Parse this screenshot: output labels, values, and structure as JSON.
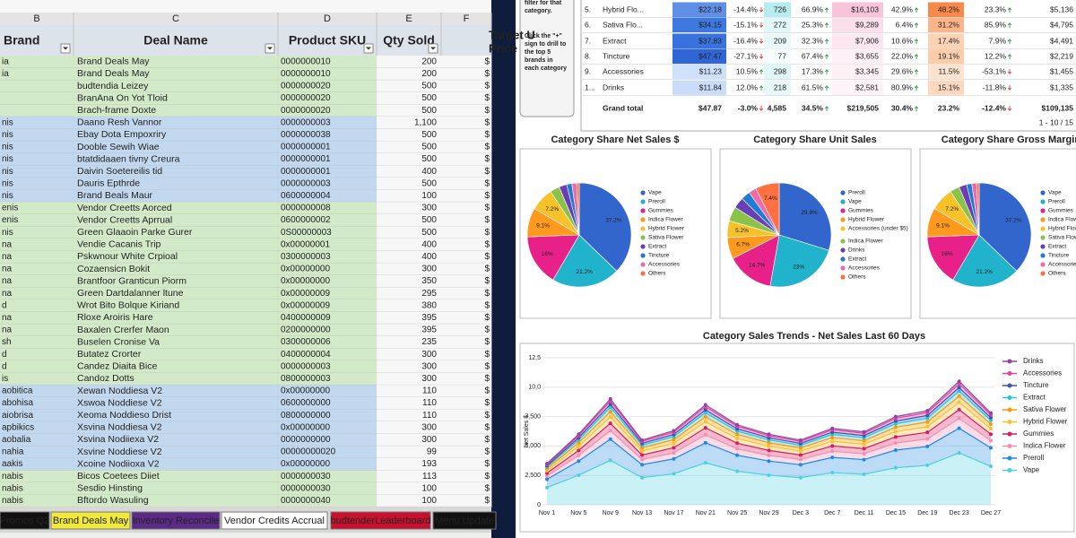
{
  "spreadsheet": {
    "column_letters": [
      "B",
      "C",
      "D",
      "E",
      "F"
    ],
    "headers": [
      "Brand",
      "Deal Name",
      "Product SKU",
      "Qty Sold",
      [
        "Target U",
        "Price"
      ]
    ],
    "rows": [
      [
        "ia",
        "Brand Deals May",
        "0000000010",
        "200",
        "$"
      ],
      [
        "ia",
        "Brand Deals May",
        "0000000010",
        "200",
        "$"
      ],
      [
        null,
        "budtendia Leizey",
        "0000000020",
        "500",
        "$"
      ],
      [
        null,
        "BranAna On Yot Tloid",
        "0000000020",
        "500",
        "$"
      ],
      [
        null,
        "Brach-frame Doxte",
        "0000000020",
        "500",
        "$"
      ],
      [
        "nis",
        "Daano Resh Vannor",
        "0000000003",
        "1,100",
        "$"
      ],
      [
        "nis",
        "Ebay Dota Empoxriry",
        "0000000038",
        "500",
        "$"
      ],
      [
        "nis",
        "Dooble Sewih Wiae",
        "0000000001",
        "500",
        "$"
      ],
      [
        "nis",
        "btatdidaaen tivny Creura",
        "0000000001",
        "500",
        "$"
      ],
      [
        "nis",
        "Daivin Soetereilis tid",
        "0000000001",
        "400",
        "$"
      ],
      [
        "nis",
        "Dauris Epthrde",
        "0000000003",
        "500",
        "$"
      ],
      [
        "nis",
        "Brand Beals Maur",
        "0600000004",
        "100",
        "$"
      ],
      [
        "enis",
        "Vendor Creetts Aorced",
        "0000000008",
        "300",
        "$"
      ],
      [
        "enis",
        "Vendor Creetts Aprrual",
        "0600000002",
        "500",
        "$"
      ],
      [
        "nis",
        "Green Glaaoin Parke Gurer",
        "0S00000003",
        "500",
        "$"
      ],
      [
        "na",
        "Vendie Cacanis Trip",
        "0x00000001",
        "400",
        "$"
      ],
      [
        "na",
        "Pskwnour White Crpioal",
        "0300000003",
        "400",
        "$"
      ],
      [
        "na",
        "Cozaensicn Bokit",
        "0x00000000",
        "300",
        "$"
      ],
      [
        "na",
        "Brantfoor Granticun Piorm",
        "0x00000000",
        "350",
        "$"
      ],
      [
        "na",
        "Green Dartdalanner ltune",
        "0x00000009",
        "295",
        "$"
      ],
      [
        "d",
        "Wrot Bito Bolque Kiriand",
        "0x00000009",
        "380",
        "$"
      ],
      [
        "na",
        "Rloxe Aroiris Hare",
        "0400000009",
        "395",
        "$"
      ],
      [
        "na",
        "Baxalen Crerfer Maon",
        "0200000000",
        "395",
        "$"
      ],
      [
        "sh",
        "Buselen Cronise Va",
        "0300000006",
        "235",
        "$"
      ],
      [
        "d",
        "Butatez Crorter",
        "0400000004",
        "300",
        "$"
      ],
      [
        "d",
        "Candez Diaita Bice",
        "0000000003",
        "300",
        "$"
      ],
      [
        "is",
        "Candoz Dotts",
        "0800000003",
        "300",
        "$"
      ],
      [
        "aobitica",
        "Xewan Noddiesa V2",
        "0x00000000",
        "110",
        "$"
      ],
      [
        "abohisa",
        "Xswoa Noddiese V2",
        "0600000000",
        "110",
        "$"
      ],
      [
        "aiobrisa",
        "Xeoma Noddieso Drist",
        "0800000000",
        "110",
        "$"
      ],
      [
        "apbikics",
        "Xsvina Noddiesa V2",
        "0x00000000",
        "300",
        "$"
      ],
      [
        "aobalia",
        "Xsvina Nodiiexa V2",
        "0000000000",
        "300",
        "$"
      ],
      [
        "nahia",
        "Xsvine Noddiese V2",
        "00000000020",
        "99",
        "$"
      ],
      [
        "aakis",
        "Xcoine Nodiioxa V2",
        "0x00000000",
        "193",
        "$"
      ],
      [
        "nabis",
        "Bicos Coetees Diiet",
        "0000000030",
        "113",
        "$"
      ],
      [
        "nabis",
        "Sesdio Hinsting",
        "0000000030",
        "100",
        "$"
      ],
      [
        "nabis",
        "Bftordo Wasuling",
        "0000000040",
        "100",
        "$"
      ]
    ],
    "tabs": [
      "Promos Q2",
      "Brand Deals May",
      "Inventory Reconcile",
      "Vendor Credits Accrual",
      "budtenderLeaderboard",
      "Menu Update"
    ]
  },
  "dashboard": {
    "note": [
      "filter for that",
      "category.",
      "Click the \"+\"",
      "sign to drill to",
      "the top 5",
      "brands in",
      "each category"
    ],
    "table": {
      "rows": [
        [
          "5.",
          "Hybrid Flo...",
          "$22.18",
          "-14.4%",
          "726",
          "66.9%",
          "$16,103",
          "42.9%",
          "48.2%",
          "23.3%",
          "$5,136"
        ],
        [
          "6.",
          "Sativa Flo...",
          "$34.15",
          "-15.1%",
          "272",
          "25.3%",
          "$9,289",
          "6.4%",
          "31.2%",
          "85.9%",
          "$4,795"
        ],
        [
          "7.",
          "Extract",
          "$37.83",
          "-16.4%",
          "209",
          "32.3%",
          "$7,906",
          "10.6%",
          "17.4%",
          "7.9%",
          "$4,491"
        ],
        [
          "8.",
          "Tincture",
          "$47.47",
          "-27.1%",
          "77",
          "67.4%",
          "$3,655",
          "22.0%",
          "19.1%",
          "12.2%",
          "$2,219"
        ],
        [
          "9.",
          "Accessories",
          "$11.23",
          "10.5%",
          "298",
          "17.3%",
          "$3,345",
          "29.6%",
          "11.5%",
          "-53.1%",
          "$1,455"
        ],
        [
          "1...",
          "Drinks",
          "$11.84",
          "12.0%",
          "218",
          "61.5%",
          "$2,581",
          "80.9%",
          "15.1%",
          "-11.8%",
          "$1,335"
        ]
      ],
      "total": [
        "Grand total",
        "$47.87",
        "-3.0%",
        "4,585",
        "34.5%",
        "$219,505",
        "30.4%",
        "23.2%",
        "-12.4%",
        "$109,135"
      ],
      "pagination": "1 - 10 / 15"
    },
    "pies": [
      {
        "type": "pie",
        "title": "Category Share Net Sales $",
        "categories": [
          "Vape",
          "Preroll",
          "Gummies",
          "Indica Flower",
          "Hybrid Flower",
          "Sativa Flower",
          "Extract",
          "Tincture",
          "Accessories",
          "Others"
        ],
        "values": [
          37.2,
          21.2,
          16,
          9.1,
          7.2,
          3.0,
          2.4,
          1.6,
          1.5,
          0.8
        ],
        "value_labels": [
          "37.2%",
          "21.2%",
          "16%",
          "9.1%",
          "7.2%",
          null,
          null,
          null,
          null,
          null
        ],
        "colors": [
          "#3366cc",
          "#22b3cc",
          "#e8208a",
          "#ff9a1f",
          "#f5c22a",
          "#8bc34a",
          "#6a3fb5",
          "#1e7bd6",
          "#f06aa8",
          "#ff7043"
        ]
      },
      {
        "type": "pie",
        "title": "Category Share Unit Sales",
        "categories": [
          "Preroll",
          "Vape",
          "Gummies",
          "Hybrid Flower",
          "Accessories (under $5)",
          "Indica Flower",
          "Drinks",
          "Extract",
          "Accessories",
          "Others"
        ],
        "values": [
          29.8,
          23,
          14.7,
          6.7,
          5.2,
          4.5,
          3.4,
          2.9,
          2.4,
          7.4
        ],
        "value_labels": [
          "29.8%",
          "23%",
          "14.7%",
          "6.7%",
          "5.2%",
          null,
          null,
          null,
          null,
          "7.4%"
        ],
        "colors": [
          "#3366cc",
          "#22b3cc",
          "#e8208a",
          "#ff9a1f",
          "#f5c22a",
          "#8bc34a",
          "#6a3fb5",
          "#1e7bd6",
          "#f06aa8",
          "#ff7043"
        ]
      },
      {
        "type": "pie",
        "title": "Category Share Gross Margin $",
        "categories": [
          "Vape",
          "Preroll",
          "Gummies",
          "Indica Flower",
          "Hybrid Flower",
          "Sativa Flower",
          "Extract",
          "Tincture",
          "Accessories",
          "Others"
        ],
        "values": [
          37.2,
          21.2,
          16,
          9.1,
          7.2,
          3.0,
          2.4,
          1.6,
          1.5,
          0.8
        ],
        "value_labels": [
          "37.2%",
          "21.2%",
          "16%",
          "9.1%",
          "7.2%",
          null,
          null,
          null,
          null,
          null
        ],
        "colors": [
          "#3366cc",
          "#22b3cc",
          "#e8208a",
          "#ff9a1f",
          "#f5c22a",
          "#8bc34a",
          "#6a3fb5",
          "#1e7bd6",
          "#f06aa8",
          "#ff7043"
        ]
      }
    ],
    "trend": {
      "type": "area",
      "stacked": true,
      "title": "Category Sales Trends - Net Sales Last 60 Days",
      "y_label": "Net Sales $",
      "categories": [
        "Nov 1",
        "Nov 5",
        "Nov 9",
        "Nov 13",
        "Nov 17",
        "Nov 21",
        "Nov 25",
        "Nov 29",
        "Dec 3",
        "Dec 7",
        "Dec 11",
        "Dec 15",
        "Dec 19",
        "Dec 23",
        "Dec 27"
      ],
      "ylim": [
        0,
        12500
      ],
      "yticks": [
        0,
        {
          "value": 2500,
          "label": "2,500"
        },
        {
          "value": 5000,
          "label": "5,000"
        },
        {
          "value": 7500,
          "label": "7,500"
        },
        {
          "value": 10000,
          "label": "10,0"
        },
        {
          "value": 12500,
          "label": "12,5"
        }
      ],
      "series": [
        {
          "name": "Drinks",
          "color": "#8e44ad",
          "values": [
            70,
            120,
            180,
            110,
            126,
            170,
            136,
            120,
            110,
            130,
            124,
            150,
            160,
            210,
            156
          ]
        },
        {
          "name": "Accessories",
          "color": "#e84393",
          "values": [
            105,
            180,
            270,
            165,
            189,
            255,
            204,
            180,
            165,
            195,
            186,
            225,
            240,
            315,
            234
          ]
        },
        {
          "name": "Tincture",
          "color": "#3f51b5",
          "values": [
            105,
            180,
            270,
            165,
            189,
            255,
            204,
            180,
            165,
            195,
            186,
            225,
            240,
            315,
            234
          ]
        },
        {
          "name": "Extract",
          "color": "#26c6da",
          "values": [
            140,
            240,
            360,
            220,
            252,
            340,
            272,
            240,
            220,
            260,
            248,
            300,
            320,
            420,
            312
          ]
        },
        {
          "name": "Sativa Flower",
          "color": "#ff9800",
          "values": [
            175,
            300,
            450,
            275,
            315,
            425,
            340,
            300,
            275,
            325,
            310,
            375,
            400,
            525,
            390
          ]
        },
        {
          "name": "Hybrid Flower",
          "color": "#fbc02d",
          "values": [
            210,
            360,
            540,
            330,
            378,
            510,
            408,
            360,
            330,
            390,
            372,
            450,
            480,
            630,
            468
          ]
        },
        {
          "name": "Gummies",
          "color": "#d81b60",
          "values": [
            245,
            420,
            630,
            385,
            441,
            595,
            476,
            420,
            385,
            455,
            434,
            525,
            560,
            735,
            546
          ]
        },
        {
          "name": "Indica Flower",
          "color": "#f48fb1",
          "values": [
            280,
            480,
            720,
            440,
            504,
            680,
            544,
            480,
            440,
            520,
            496,
            600,
            640,
            840,
            624
          ]
        },
        {
          "name": "Preroll",
          "color": "#1e88e5",
          "values": [
            700,
            1200,
            1800,
            1100,
            1260,
            1700,
            1360,
            1200,
            1100,
            1300,
            1240,
            1500,
            1600,
            2100,
            1560
          ]
        },
        {
          "name": "Vape",
          "color": "#4dd0e1",
          "values": [
            1470,
            2520,
            3780,
            2310,
            2646,
            3570,
            2856,
            2520,
            2310,
            2730,
            2604,
            3150,
            3360,
            4410,
            3276
          ]
        }
      ]
    }
  }
}
